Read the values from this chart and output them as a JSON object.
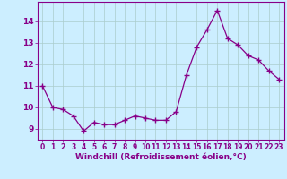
{
  "x": [
    0,
    1,
    2,
    3,
    4,
    5,
    6,
    7,
    8,
    9,
    10,
    11,
    12,
    13,
    14,
    15,
    16,
    17,
    18,
    19,
    20,
    21,
    22,
    23
  ],
  "y": [
    11.0,
    10.0,
    9.9,
    9.6,
    8.9,
    9.3,
    9.2,
    9.2,
    9.4,
    9.6,
    9.5,
    9.4,
    9.4,
    9.8,
    11.5,
    12.8,
    13.6,
    14.5,
    13.2,
    12.9,
    12.4,
    12.2,
    11.7,
    11.3
  ],
  "line_color": "#880088",
  "marker": "+",
  "marker_size": 4,
  "marker_lw": 1.0,
  "bg_color": "#cceeff",
  "grid_color": "#aacccc",
  "xlabel": "Windchill (Refroidissement éolien,°C)",
  "ylim": [
    8.5,
    14.9
  ],
  "xlim": [
    -0.5,
    23.5
  ],
  "yticks": [
    9,
    10,
    11,
    12,
    13,
    14
  ],
  "xticks": [
    0,
    1,
    2,
    3,
    4,
    5,
    6,
    7,
    8,
    9,
    10,
    11,
    12,
    13,
    14,
    15,
    16,
    17,
    18,
    19,
    20,
    21,
    22,
    23
  ],
  "axis_color": "#880088",
  "tick_color": "#880088",
  "xlabel_fontsize": 6.5,
  "xtick_fontsize": 5.5,
  "ytick_fontsize": 6.5,
  "linewidth": 0.9
}
